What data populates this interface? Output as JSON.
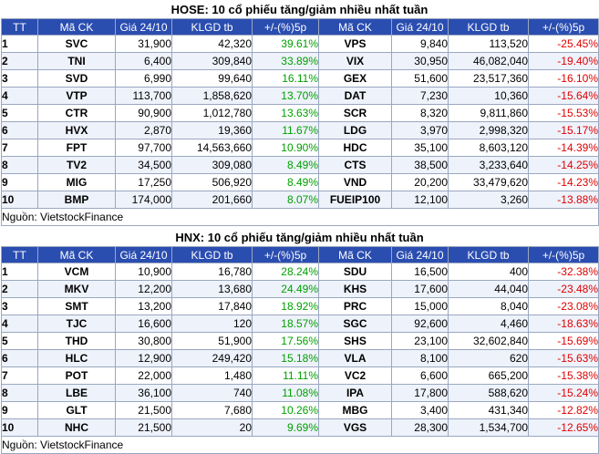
{
  "tables": [
    {
      "title": "HOSE: 10 cổ phiếu tăng/giảm nhiều nhất tuần",
      "headers": [
        "TT",
        "Mã CK",
        "Giá 24/10",
        "KLGD tb",
        "+/-(%)5p",
        "Mã CK",
        "Giá 24/10",
        "KLGD tb",
        "+/-(%)5p"
      ],
      "rows": [
        {
          "tt": "1",
          "up_code": "SVC",
          "up_price": "31,900",
          "up_vol": "42,320",
          "up_pct": "39.61%",
          "dn_code": "VPS",
          "dn_price": "9,840",
          "dn_vol": "113,520",
          "dn_pct": "-25.45%"
        },
        {
          "tt": "2",
          "up_code": "TNI",
          "up_price": "6,400",
          "up_vol": "309,840",
          "up_pct": "33.89%",
          "dn_code": "VIX",
          "dn_price": "30,950",
          "dn_vol": "46,082,040",
          "dn_pct": "-19.40%"
        },
        {
          "tt": "3",
          "up_code": "SVD",
          "up_price": "6,990",
          "up_vol": "99,640",
          "up_pct": "16.11%",
          "dn_code": "GEX",
          "dn_price": "51,600",
          "dn_vol": "23,517,360",
          "dn_pct": "-16.10%"
        },
        {
          "tt": "4",
          "up_code": "VTP",
          "up_price": "113,700",
          "up_vol": "1,858,620",
          "up_pct": "13.70%",
          "dn_code": "DAT",
          "dn_price": "7,230",
          "dn_vol": "10,360",
          "dn_pct": "-15.64%"
        },
        {
          "tt": "5",
          "up_code": "CTR",
          "up_price": "90,900",
          "up_vol": "1,012,780",
          "up_pct": "13.63%",
          "dn_code": "SCR",
          "dn_price": "8,320",
          "dn_vol": "9,811,860",
          "dn_pct": "-15.53%"
        },
        {
          "tt": "6",
          "up_code": "HVX",
          "up_price": "2,870",
          "up_vol": "19,360",
          "up_pct": "11.67%",
          "dn_code": "LDG",
          "dn_price": "3,970",
          "dn_vol": "2,998,320",
          "dn_pct": "-15.17%"
        },
        {
          "tt": "7",
          "up_code": "FPT",
          "up_price": "97,700",
          "up_vol": "14,563,660",
          "up_pct": "10.90%",
          "dn_code": "HDC",
          "dn_price": "35,100",
          "dn_vol": "8,603,120",
          "dn_pct": "-14.39%"
        },
        {
          "tt": "8",
          "up_code": "TV2",
          "up_price": "34,500",
          "up_vol": "309,080",
          "up_pct": "8.49%",
          "dn_code": "CTS",
          "dn_price": "38,500",
          "dn_vol": "3,233,640",
          "dn_pct": "-14.25%"
        },
        {
          "tt": "9",
          "up_code": "MIG",
          "up_price": "17,250",
          "up_vol": "506,920",
          "up_pct": "8.49%",
          "dn_code": "VND",
          "dn_price": "20,200",
          "dn_vol": "33,479,620",
          "dn_pct": "-14.23%"
        },
        {
          "tt": "10",
          "up_code": "BMP",
          "up_price": "174,000",
          "up_vol": "201,660",
          "up_pct": "8.07%",
          "dn_code": "FUEIP100",
          "dn_price": "12,100",
          "dn_vol": "3,260",
          "dn_pct": "-13.88%"
        }
      ],
      "source": "Nguồn: VietstockFinance"
    },
    {
      "title": "HNX: 10 cổ phiếu tăng/giảm nhiều nhất tuần",
      "headers": [
        "TT",
        "Mã CK",
        "Giá 24/10",
        "KLGD tb",
        "+/-(%)5p",
        "Mã CK",
        "Giá 24/10",
        "KLGD tb",
        "+/-(%)5p"
      ],
      "rows": [
        {
          "tt": "1",
          "up_code": "VCM",
          "up_price": "10,900",
          "up_vol": "16,780",
          "up_pct": "28.24%",
          "dn_code": "SDU",
          "dn_price": "16,500",
          "dn_vol": "400",
          "dn_pct": "-32.38%"
        },
        {
          "tt": "2",
          "up_code": "MKV",
          "up_price": "12,200",
          "up_vol": "13,680",
          "up_pct": "24.49%",
          "dn_code": "KHS",
          "dn_price": "17,600",
          "dn_vol": "44,040",
          "dn_pct": "-23.48%"
        },
        {
          "tt": "3",
          "up_code": "SMT",
          "up_price": "13,200",
          "up_vol": "17,840",
          "up_pct": "18.92%",
          "dn_code": "PRC",
          "dn_price": "15,000",
          "dn_vol": "8,040",
          "dn_pct": "-23.08%"
        },
        {
          "tt": "4",
          "up_code": "TJC",
          "up_price": "16,600",
          "up_vol": "120",
          "up_pct": "18.57%",
          "dn_code": "SGC",
          "dn_price": "92,600",
          "dn_vol": "4,460",
          "dn_pct": "-18.63%"
        },
        {
          "tt": "5",
          "up_code": "THD",
          "up_price": "30,800",
          "up_vol": "51,900",
          "up_pct": "17.56%",
          "dn_code": "SHS",
          "dn_price": "23,100",
          "dn_vol": "32,602,840",
          "dn_pct": "-15.69%"
        },
        {
          "tt": "6",
          "up_code": "HLC",
          "up_price": "12,900",
          "up_vol": "249,420",
          "up_pct": "15.18%",
          "dn_code": "VLA",
          "dn_price": "8,100",
          "dn_vol": "620",
          "dn_pct": "-15.63%"
        },
        {
          "tt": "7",
          "up_code": "POT",
          "up_price": "22,000",
          "up_vol": "1,480",
          "up_pct": "11.11%",
          "dn_code": "VC2",
          "dn_price": "6,600",
          "dn_vol": "665,200",
          "dn_pct": "-15.38%"
        },
        {
          "tt": "8",
          "up_code": "LBE",
          "up_price": "36,100",
          "up_vol": "740",
          "up_pct": "11.08%",
          "dn_code": "IPA",
          "dn_price": "17,800",
          "dn_vol": "588,620",
          "dn_pct": "-15.24%"
        },
        {
          "tt": "9",
          "up_code": "GLT",
          "up_price": "21,500",
          "up_vol": "7,680",
          "up_pct": "10.26%",
          "dn_code": "MBG",
          "dn_price": "3,400",
          "dn_vol": "431,340",
          "dn_pct": "-12.82%"
        },
        {
          "tt": "10",
          "up_code": "NHC",
          "up_price": "21,500",
          "up_vol": "20",
          "up_pct": "9.69%",
          "dn_code": "VGS",
          "dn_price": "28,300",
          "dn_vol": "1,534,700",
          "dn_pct": "-12.65%"
        }
      ],
      "source": "Nguồn: VietstockFinance"
    }
  ],
  "colors": {
    "header_bg": "#2a4db0",
    "header_text": "#ffffff",
    "row_alt_bg": "#eef2fb",
    "gain": "#00a000",
    "loss": "#e00000",
    "border": "#9aa7bf"
  }
}
